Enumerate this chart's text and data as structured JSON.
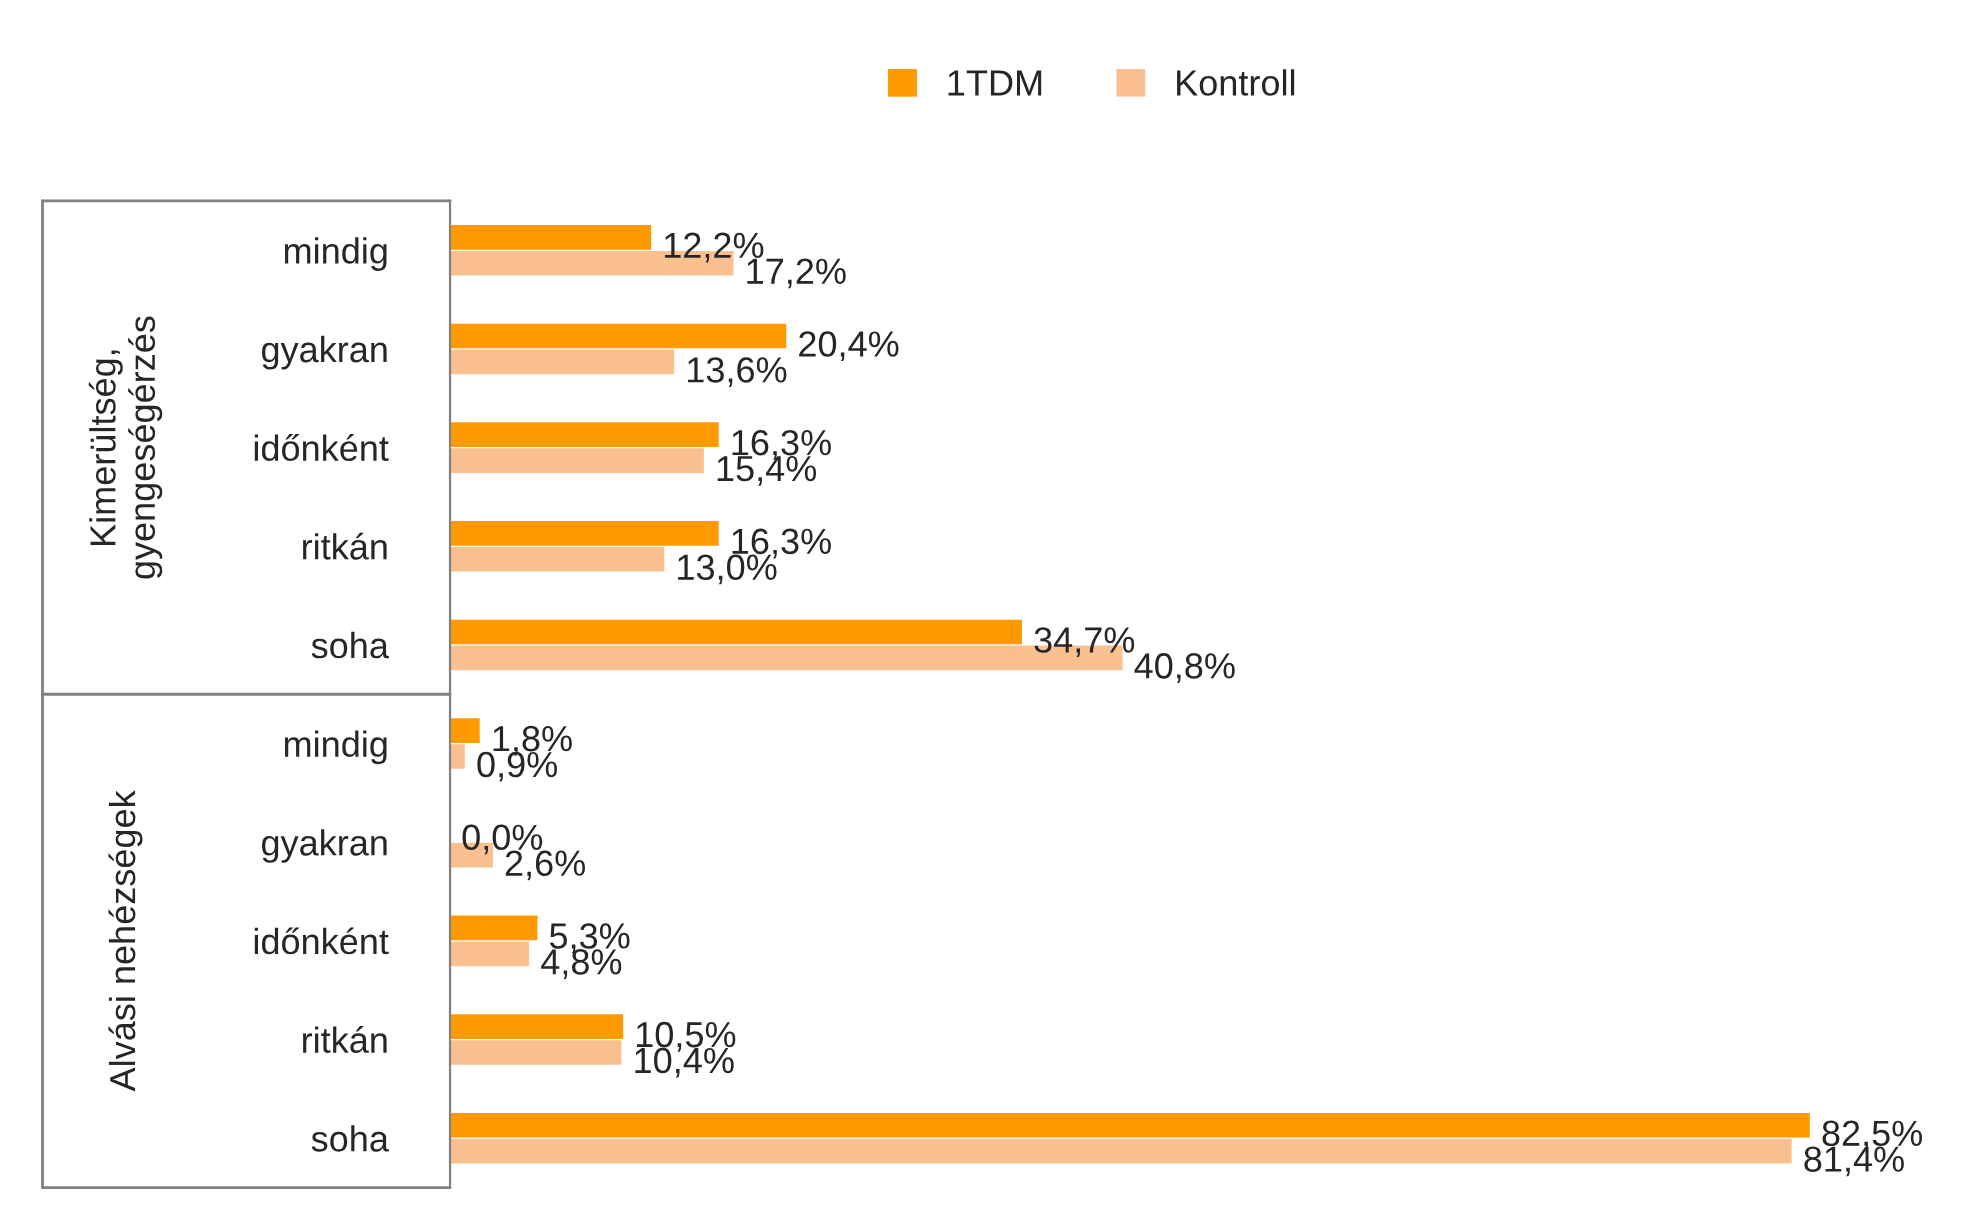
{
  "chart_data": {
    "type": "bar",
    "orientation": "horizontal",
    "legend": "top",
    "categories": [
      "mindig",
      "gyakran",
      "időnként",
      "ritkán",
      "soha",
      "mindig",
      "gyakran",
      "időnként",
      "ritkán",
      "soha"
    ],
    "series": [
      {
        "name": "1TDM",
        "color": "#ff9900",
        "values": [
          12.2,
          20.4,
          16.3,
          16.3,
          34.7,
          1.8,
          0.0,
          5.3,
          10.5,
          82.5
        ],
        "value_labels": [
          "12,2%",
          "20,4%",
          "16,3%",
          "16,3%",
          "34,7%",
          "1,8%",
          "0,0%",
          "5,3%",
          "10,5%",
          "82,5%"
        ]
      },
      {
        "name": "Kontroll",
        "color": "#fac090",
        "values": [
          17.2,
          13.6,
          15.4,
          13.0,
          40.8,
          0.9,
          2.6,
          4.8,
          10.4,
          81.4
        ],
        "value_labels": [
          "17,2%",
          "13,6%",
          "15,4%",
          "13,0%",
          "40,8%",
          "0,9%",
          "2,6%",
          "4,8%",
          "10,4%",
          "81,4%"
        ]
      }
    ],
    "annotations": [
      "Kimerültség,\ngyengeségérzés",
      "Alvási nehézségek"
    ],
    "grid": false
  }
}
